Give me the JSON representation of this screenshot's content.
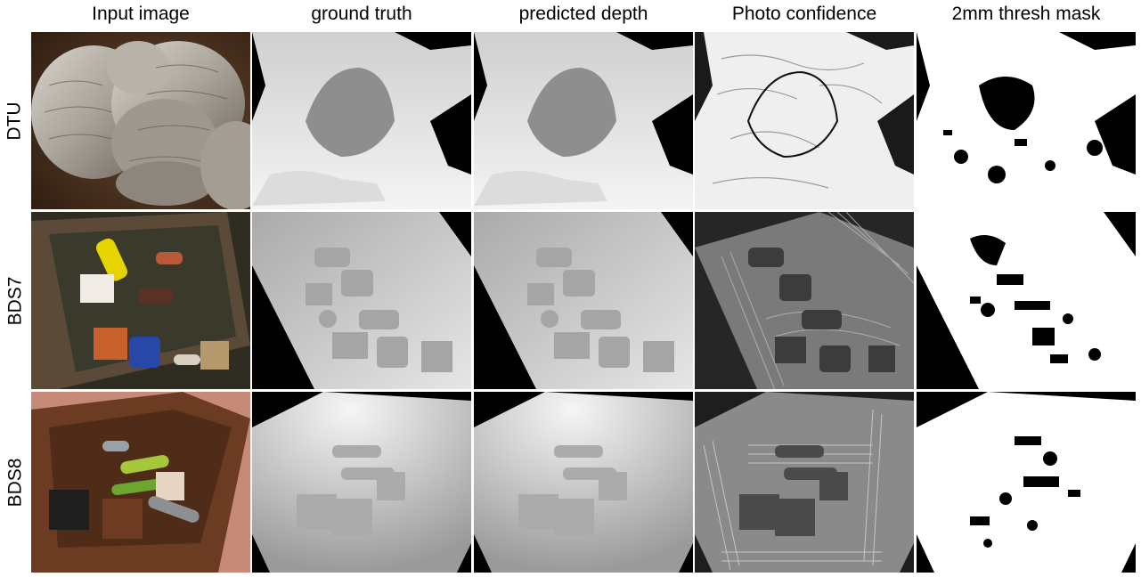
{
  "columns": [
    {
      "label": "Input image"
    },
    {
      "label": "ground truth"
    },
    {
      "label": "predicted depth"
    },
    {
      "label": "Photo confidence"
    },
    {
      "label": "2mm thresh mask"
    }
  ],
  "rows": [
    {
      "label": "DTU",
      "input_subject": "stone bird sculpture"
    },
    {
      "label": "BDS7",
      "input_subject": "box of pipes and blocks"
    },
    {
      "label": "BDS8",
      "input_subject": "rusty box of cylinders and cubes"
    }
  ]
}
